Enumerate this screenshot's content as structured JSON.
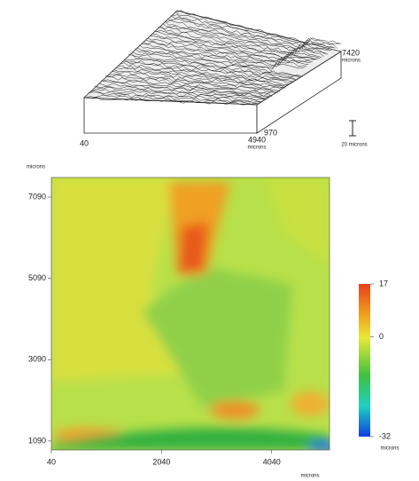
{
  "chart_data": [
    {
      "type": "surface",
      "unit": "microns",
      "xticks": [
        40,
        4940
      ],
      "yticks": [
        970,
        7420
      ],
      "scale_bar": "20 microns"
    },
    {
      "type": "heatmap",
      "unit": "microns",
      "xlim": [
        40,
        5090
      ],
      "ylim": [
        870,
        7570
      ],
      "xticks": [
        40,
        2040,
        4040
      ],
      "yticks": [
        1090,
        3090,
        5090,
        7090
      ],
      "clim": [
        -32,
        17
      ],
      "cticks": [
        17,
        0,
        -32
      ]
    }
  ]
}
